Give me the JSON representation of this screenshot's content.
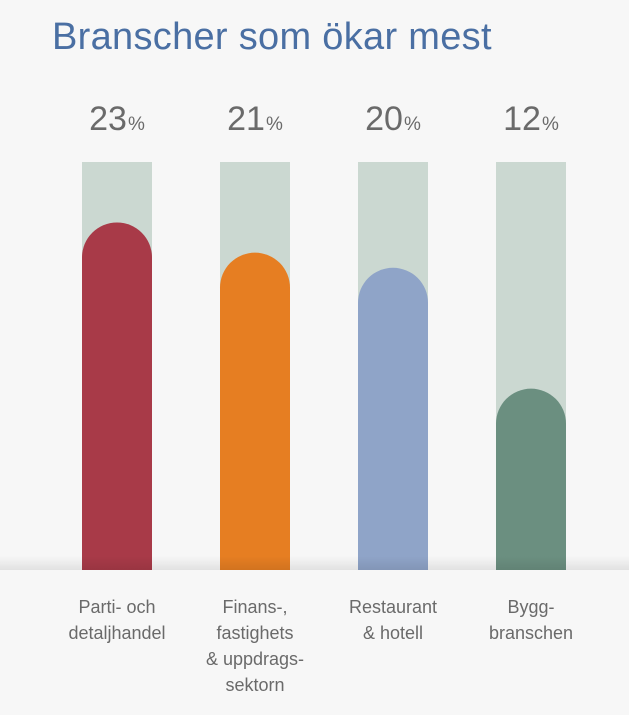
{
  "title": "Branscher som ökar mest",
  "chart_data": {
    "type": "bar",
    "title": "Branscher som ökar mest",
    "categories": [
      "Parti- och\ndetaljhandel",
      "Finans-,\nfastighets\n& uppdrags-\nsektorn",
      "Restaurant\n& hotell",
      "Bygg-\nbranschen"
    ],
    "values": [
      23,
      21,
      20,
      12
    ],
    "value_labels": [
      "23",
      "21",
      "20",
      "12"
    ],
    "unit": "%",
    "ylim": [
      0,
      27
    ],
    "grid": false,
    "legend": "none",
    "colors": [
      "#a83a48",
      "#e67e22",
      "#8fa4c8",
      "#6b8f80"
    ],
    "track_color": "#cbd8d1"
  }
}
